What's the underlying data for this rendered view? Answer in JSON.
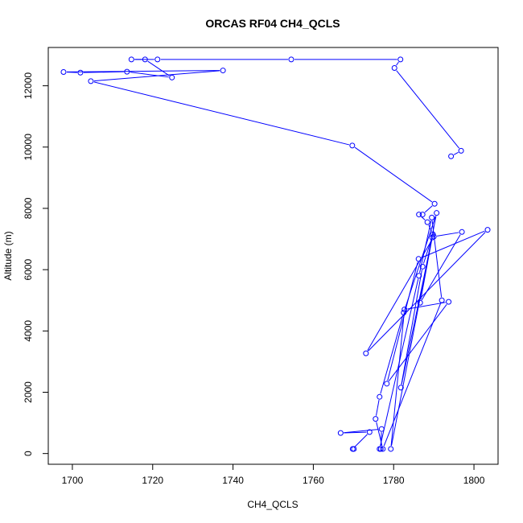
{
  "chart_data": {
    "type": "line",
    "title": "ORCAS RF04 CH4_QCLS",
    "xlabel": "CH4_QCLS",
    "ylabel": "Altitude (m)",
    "xlim": [
      1694,
      1806
    ],
    "ylim": [
      -350,
      13250
    ],
    "xticks": [
      1700,
      1720,
      1740,
      1760,
      1780,
      1800
    ],
    "yticks": [
      0,
      2000,
      4000,
      6000,
      8000,
      10000,
      12000
    ],
    "grid": false,
    "color": "#0000ff",
    "markers": "open-circle",
    "points": [
      [
        1770.1,
        150
      ],
      [
        1769.8,
        150
      ],
      [
        1774.0,
        700
      ],
      [
        1766.8,
        670
      ],
      [
        1777.0,
        800
      ],
      [
        1776.8,
        150
      ],
      [
        1776.5,
        150
      ],
      [
        1786.3,
        5800
      ],
      [
        1789.5,
        7700
      ],
      [
        1792.0,
        5000
      ],
      [
        1777.3,
        150
      ],
      [
        1775.5,
        1130
      ],
      [
        1776.5,
        1850
      ],
      [
        1782.5,
        4600
      ],
      [
        1790.7,
        7850
      ],
      [
        1779.3,
        150
      ],
      [
        1782.7,
        4700
      ],
      [
        1793.7,
        4950
      ],
      [
        1778.3,
        2280
      ],
      [
        1786.2,
        6350
      ],
      [
        1803.4,
        7300
      ],
      [
        1773.1,
        3270
      ],
      [
        1790.0,
        7080
      ],
      [
        1797.0,
        7230
      ],
      [
        1786.6,
        4920
      ],
      [
        1789.6,
        7050
      ],
      [
        1781.8,
        2150
      ],
      [
        1787.2,
        6100
      ],
      [
        1789.8,
        7150
      ],
      [
        1788.4,
        7550
      ],
      [
        1786.3,
        7800
      ],
      [
        1787.2,
        7800
      ],
      [
        1790.2,
        8150
      ],
      [
        1769.7,
        10050
      ],
      [
        1704.6,
        12150
      ],
      [
        1737.5,
        12500
      ],
      [
        1697.8,
        12450
      ],
      [
        1702.0,
        12430
      ],
      [
        1713.6,
        12460
      ],
      [
        1724.8,
        12270
      ],
      [
        1718.1,
        12860
      ],
      [
        1714.7,
        12860
      ],
      [
        1721.2,
        12860
      ],
      [
        1754.5,
        12860
      ],
      [
        1781.7,
        12860
      ],
      [
        1780.2,
        12580
      ],
      [
        1796.8,
        9880
      ],
      [
        1794.3,
        9700
      ]
    ]
  }
}
